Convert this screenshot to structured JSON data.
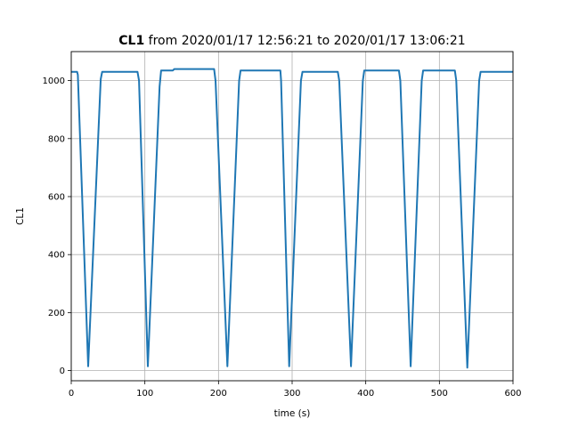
{
  "chart_data": {
    "type": "line",
    "title_bold": "CL1",
    "title_rest": " from 2020/01/17 12:56:21 to 2020/01/17 13:06:21",
    "xlabel": "time (s)",
    "ylabel": "CL1",
    "xlim": [
      0,
      600
    ],
    "ylim": [
      -35,
      1100
    ],
    "xticks": [
      0,
      100,
      200,
      300,
      400,
      500,
      600
    ],
    "yticks": [
      0,
      200,
      400,
      600,
      800,
      1000
    ],
    "grid": true,
    "line_color": "#1f77b4",
    "series": [
      {
        "x": [
          0,
          8,
          9,
          23,
          40,
          42,
          90,
          92,
          104,
          120,
          122,
          138,
          140,
          194,
          196,
          212,
          228,
          230,
          284,
          285,
          296,
          312,
          314,
          362,
          364,
          380,
          396,
          398,
          445,
          447,
          461,
          476,
          478,
          521,
          523,
          538,
          554,
          556,
          600
        ],
        "y": [
          1030,
          1030,
          1020,
          15,
          1005,
          1030,
          1030,
          1000,
          15,
          980,
          1035,
          1035,
          1040,
          1040,
          1000,
          15,
          1000,
          1035,
          1035,
          1000,
          15,
          1000,
          1030,
          1030,
          1000,
          15,
          1000,
          1035,
          1035,
          1000,
          15,
          1000,
          1035,
          1035,
          1000,
          10,
          1000,
          1030,
          1030
        ]
      }
    ]
  }
}
